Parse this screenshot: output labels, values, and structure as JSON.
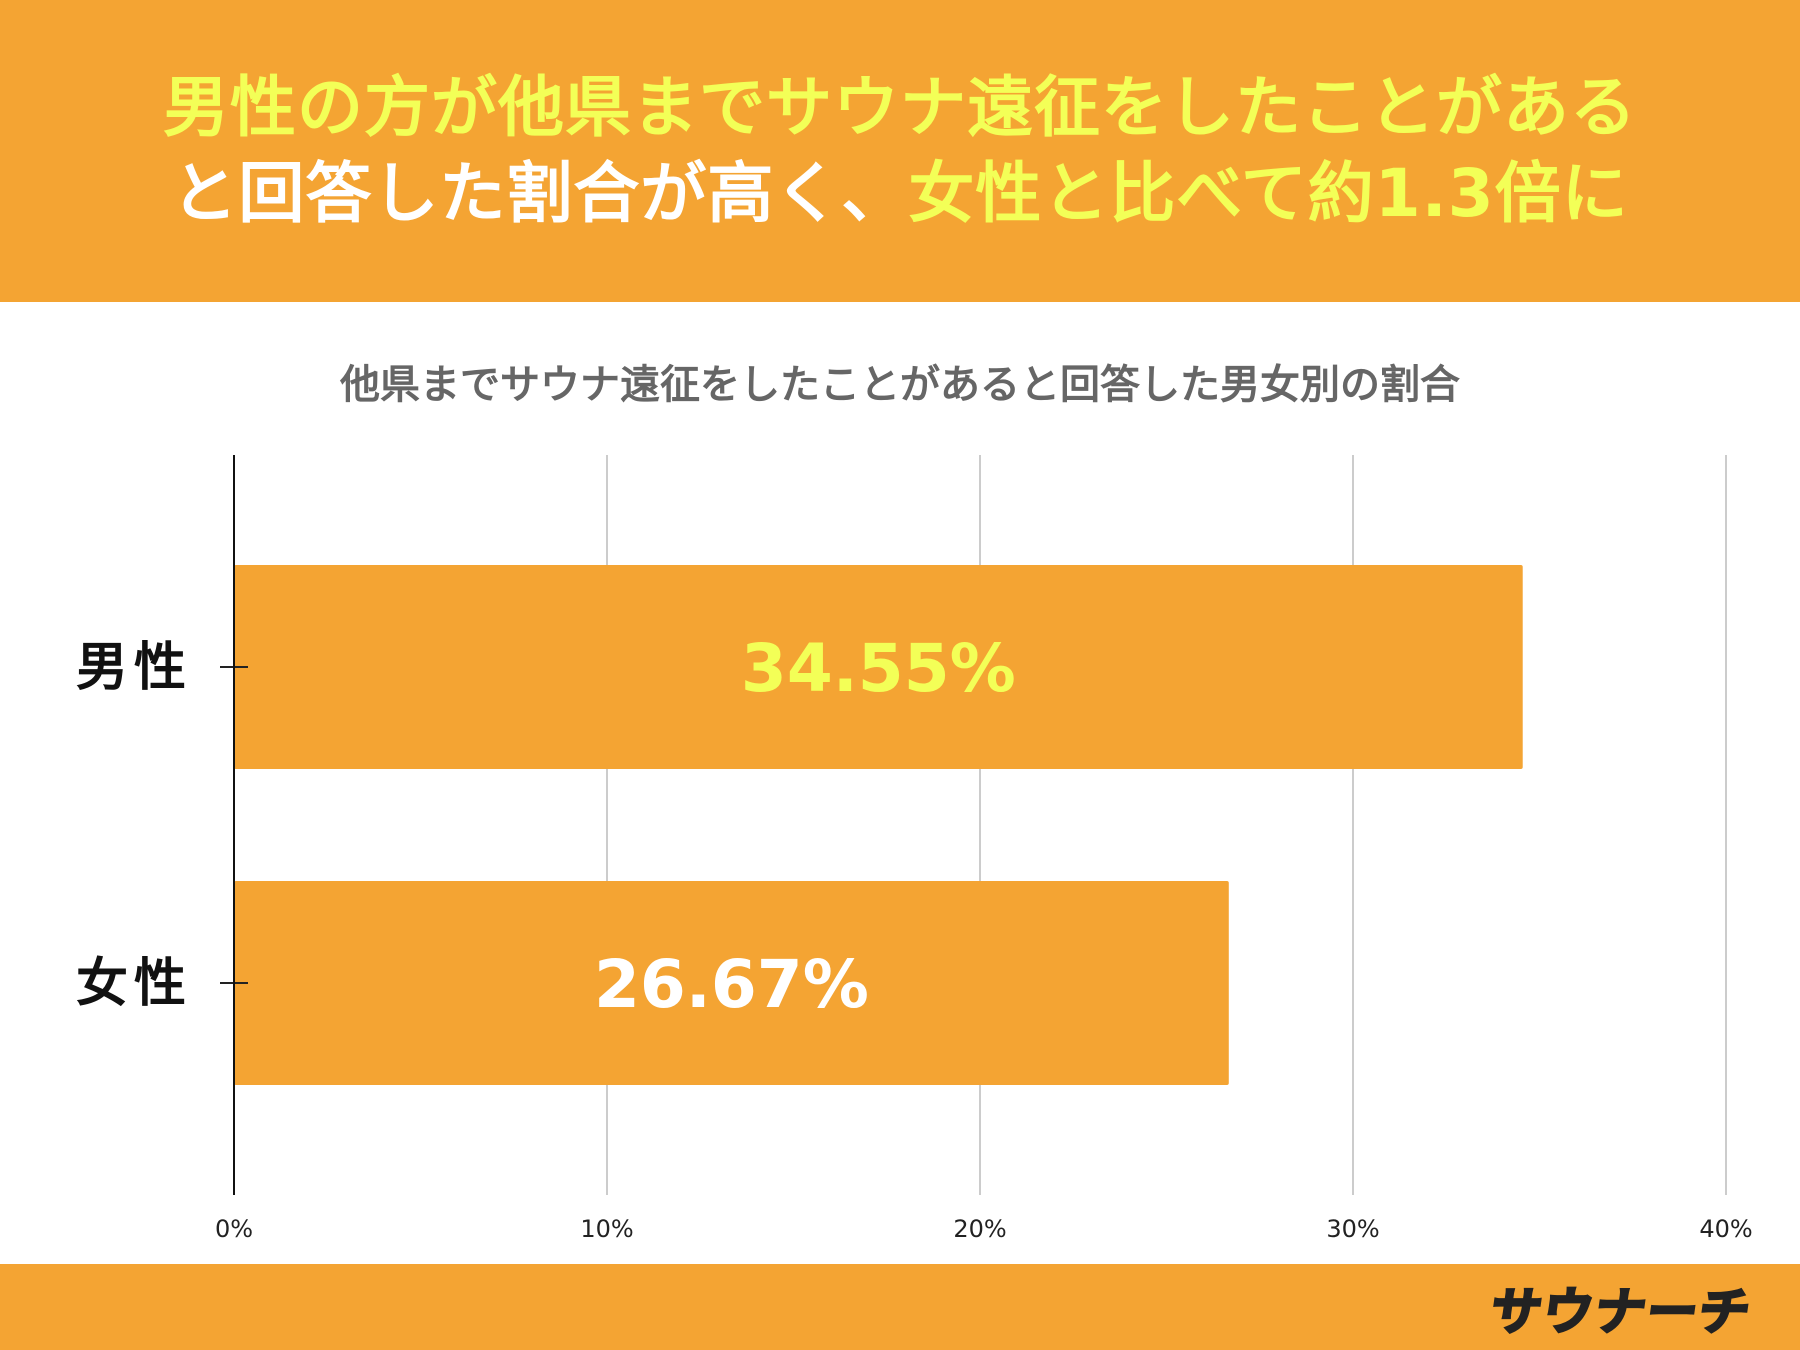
{
  "header": {
    "line1": [
      {
        "text": "男性の方が他県までサウナ遠征をしたことがある",
        "color": "yellow"
      }
    ],
    "line2": [
      {
        "text": "と回答した割合が高く、",
        "color": "white"
      },
      {
        "text": "女性と比べて約1.3倍に",
        "color": "yellow"
      }
    ]
  },
  "colors": {
    "brand_orange": "#f4a433",
    "header_yellow": "#f3ff57",
    "bar_fill": "#f4a433",
    "label_male": "#f3ff57",
    "label_female": "#ffffff",
    "grid": "#cccccc",
    "title_gray": "#666666"
  },
  "chart_data": {
    "type": "bar",
    "orientation": "horizontal",
    "title": "他県までサウナ遠征をしたことがあると回答した男女別の割合",
    "categories": [
      "男性",
      "女性"
    ],
    "values": [
      34.55,
      26.67
    ],
    "data_labels": [
      "34.55%",
      "26.67%"
    ],
    "xlim": [
      0,
      40
    ],
    "x_ticks": [
      0,
      10,
      20,
      30,
      40
    ],
    "x_tick_labels": [
      "0%",
      "10%",
      "20%",
      "30%",
      "40%"
    ],
    "xlabel": "",
    "ylabel": "",
    "grid": true,
    "legend": "none"
  },
  "logo": {
    "text": "サウナーチ"
  }
}
